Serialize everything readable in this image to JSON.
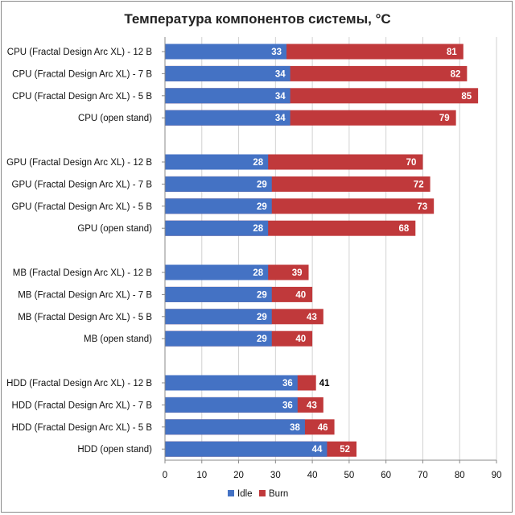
{
  "chart_data": {
    "type": "bar",
    "orientation": "horizontal",
    "stacked": true,
    "title": "Температура компонентов системы, °C",
    "xlabel": "",
    "ylabel": "",
    "xlim": [
      0,
      90
    ],
    "xticks": [
      0,
      10,
      20,
      30,
      40,
      50,
      60,
      70,
      80,
      90
    ],
    "grid": true,
    "legend_position": "bottom",
    "colors": {
      "Idle": "#4472c4",
      "Burn": "#c0393b"
    },
    "groups": [
      {
        "categories": [
          "CPU (Fractal Design Arc XL) - 12 В",
          "CPU (Fractal Design Arc XL) - 7 В",
          "CPU (Fractal Design Arc XL) - 5 В",
          "CPU (open stand)"
        ],
        "idle": [
          33,
          34,
          34,
          34
        ],
        "burn": [
          81,
          82,
          85,
          79
        ]
      },
      {
        "categories": [
          "GPU (Fractal Design Arc XL) - 12 В",
          "GPU (Fractal Design Arc XL) - 7 В",
          "GPU (Fractal Design Arc XL) - 5 В",
          "GPU (open stand)"
        ],
        "idle": [
          28,
          29,
          29,
          28
        ],
        "burn": [
          70,
          72,
          73,
          68
        ]
      },
      {
        "categories": [
          "MB (Fractal Design Arc XL) - 12 В",
          "MB (Fractal Design Arc XL) - 7 В",
          "MB (Fractal Design Arc XL) - 5 В",
          "MB (open stand)"
        ],
        "idle": [
          28,
          29,
          29,
          29
        ],
        "burn": [
          39,
          40,
          43,
          40
        ]
      },
      {
        "categories": [
          "HDD (Fractal Design Arc XL) - 12 В",
          "HDD (Fractal Design Arc XL) - 7 В",
          "HDD (Fractal Design Arc XL) - 5 В",
          "HDD (open stand)"
        ],
        "idle": [
          36,
          36,
          38,
          44
        ],
        "burn": [
          41,
          43,
          46,
          52
        ]
      }
    ],
    "series": [
      {
        "name": "Idle"
      },
      {
        "name": "Burn"
      }
    ]
  }
}
